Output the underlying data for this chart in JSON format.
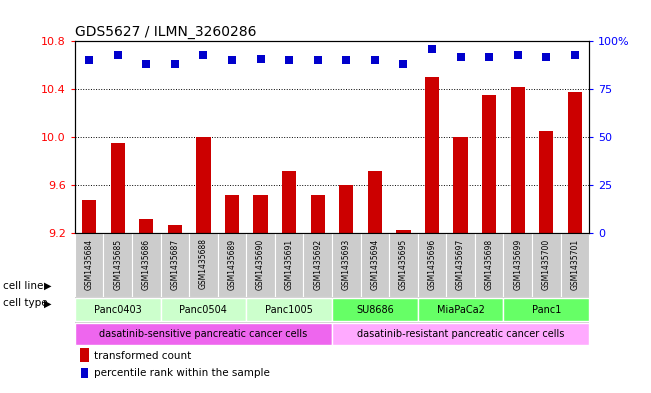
{
  "title": "GDS5627 / ILMN_3260286",
  "samples": [
    "GSM1435684",
    "GSM1435685",
    "GSM1435686",
    "GSM1435687",
    "GSM1435688",
    "GSM1435689",
    "GSM1435690",
    "GSM1435691",
    "GSM1435692",
    "GSM1435693",
    "GSM1435694",
    "GSM1435695",
    "GSM1435696",
    "GSM1435697",
    "GSM1435698",
    "GSM1435699",
    "GSM1435700",
    "GSM1435701"
  ],
  "transformed_count": [
    9.48,
    9.95,
    9.32,
    9.27,
    10.0,
    9.52,
    9.52,
    9.72,
    9.52,
    9.6,
    9.72,
    9.23,
    10.5,
    10.0,
    10.35,
    10.42,
    10.05,
    10.38
  ],
  "percentile_rank": [
    90,
    93,
    88,
    88,
    93,
    90,
    91,
    90,
    90,
    90,
    90,
    88,
    96,
    92,
    92,
    93,
    92,
    93
  ],
  "ylim_left": [
    9.2,
    10.8
  ],
  "ylim_right": [
    0,
    100
  ],
  "yticks_left": [
    9.2,
    9.6,
    10.0,
    10.4,
    10.8
  ],
  "yticks_right": [
    0,
    25,
    50,
    75,
    100
  ],
  "cell_lines": [
    {
      "label": "Panc0403",
      "start": 0,
      "end": 2,
      "color": "#ccffcc"
    },
    {
      "label": "Panc0504",
      "start": 3,
      "end": 5,
      "color": "#ccffcc"
    },
    {
      "label": "Panc1005",
      "start": 6,
      "end": 8,
      "color": "#ccffcc"
    },
    {
      "label": "SU8686",
      "start": 9,
      "end": 11,
      "color": "#66ff66"
    },
    {
      "label": "MiaPaCa2",
      "start": 12,
      "end": 14,
      "color": "#66ff66"
    },
    {
      "label": "Panc1",
      "start": 15,
      "end": 17,
      "color": "#66ff66"
    }
  ],
  "cell_types": [
    {
      "label": "dasatinib-sensitive pancreatic cancer cells",
      "start": 0,
      "end": 8,
      "color": "#ee66ee"
    },
    {
      "label": "dasatinib-resistant pancreatic cancer cells",
      "start": 9,
      "end": 17,
      "color": "#ffaaff"
    }
  ],
  "sample_row_color": "#cccccc",
  "bar_color": "#cc0000",
  "dot_color": "#0000cc",
  "legend_bar_label": "transformed count",
  "legend_dot_label": "percentile rank within the sample",
  "cell_line_label": "cell line",
  "cell_type_label": "cell type",
  "bar_width": 0.5,
  "dot_size": 30
}
